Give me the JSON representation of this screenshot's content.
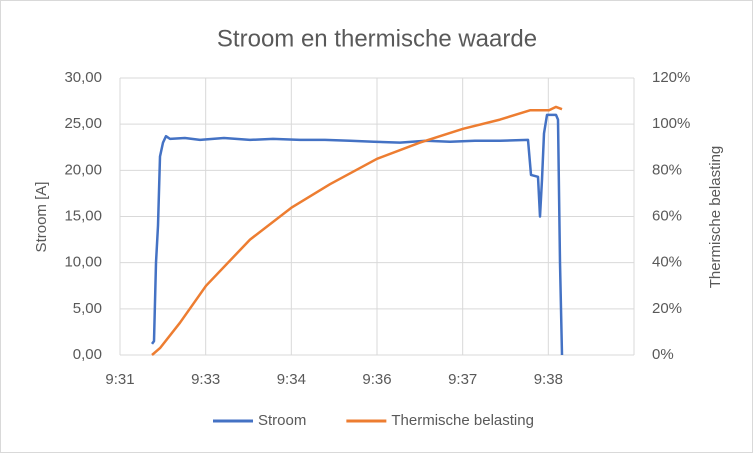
{
  "chart_data": {
    "type": "line",
    "title": "Stroom en thermische waarde",
    "y_label": "Stroom [A]",
    "y2_label": "Thermische belasting",
    "xlim": [
      31.4,
      39.8
    ],
    "xticks": [
      {
        "value": 31.4,
        "label": "9:31"
      },
      {
        "value": 32.8,
        "label": "9:33"
      },
      {
        "value": 34.2,
        "label": "9:34"
      },
      {
        "value": 35.6,
        "label": "9:36"
      },
      {
        "value": 37.0,
        "label": "9:37"
      },
      {
        "value": 38.4,
        "label": "9:38"
      }
    ],
    "ylim": [
      0,
      30
    ],
    "yticks": [
      {
        "value": 0,
        "label": "0,00"
      },
      {
        "value": 5,
        "label": "5,00"
      },
      {
        "value": 10,
        "label": "10,00"
      },
      {
        "value": 15,
        "label": "15,00"
      },
      {
        "value": 20,
        "label": "20,00"
      },
      {
        "value": 25,
        "label": "25,00"
      },
      {
        "value": 30,
        "label": "30,00"
      }
    ],
    "y2lim": [
      0,
      120
    ],
    "y2ticks": [
      {
        "value": 0,
        "label": "0%"
      },
      {
        "value": 20,
        "label": "20%"
      },
      {
        "value": 40,
        "label": "40%"
      },
      {
        "value": 60,
        "label": "60%"
      },
      {
        "value": 80,
        "label": "80%"
      },
      {
        "value": 100,
        "label": "100%"
      },
      {
        "value": 120,
        "label": "120%"
      }
    ],
    "grid": true,
    "legend": "bottom",
    "series": [
      {
        "name": "Stroom",
        "color": "#4472c4",
        "x": [
          31.923,
          31.956,
          31.988,
          32.021,
          32.054,
          32.103,
          32.152,
          32.217,
          32.46,
          32.707,
          33.1,
          33.525,
          33.9,
          34.342,
          34.75,
          35.159,
          35.55,
          35.976,
          36.4,
          36.793,
          37.2,
          37.61,
          38.068,
          38.117,
          38.231,
          38.264,
          38.297,
          38.329,
          38.378,
          38.525,
          38.558,
          38.591,
          38.623
        ],
        "values": [
          1.2,
          1.5,
          10,
          14,
          21.5,
          23.0,
          23.7,
          23.4,
          23.5,
          23.3,
          23.5,
          23.3,
          23.4,
          23.3,
          23.3,
          23.2,
          23.1,
          23.0,
          23.2,
          23.1,
          23.2,
          23.2,
          23.3,
          19.5,
          19.3,
          15,
          19,
          24,
          26,
          26,
          25.5,
          10,
          0
        ]
      },
      {
        "name": "Thermische belasting",
        "color": "#ed7d31",
        "axis": "y2",
        "x": [
          31.923,
          32.054,
          32.381,
          32.805,
          33.525,
          34.211,
          34.832,
          35.6,
          36.303,
          37.005,
          37.61,
          38.1,
          38.411,
          38.525,
          38.623
        ],
        "values": [
          0,
          3,
          14,
          30,
          50,
          64,
          74,
          85,
          92,
          98,
          102,
          106,
          106,
          107.5,
          106.5
        ]
      }
    ]
  }
}
